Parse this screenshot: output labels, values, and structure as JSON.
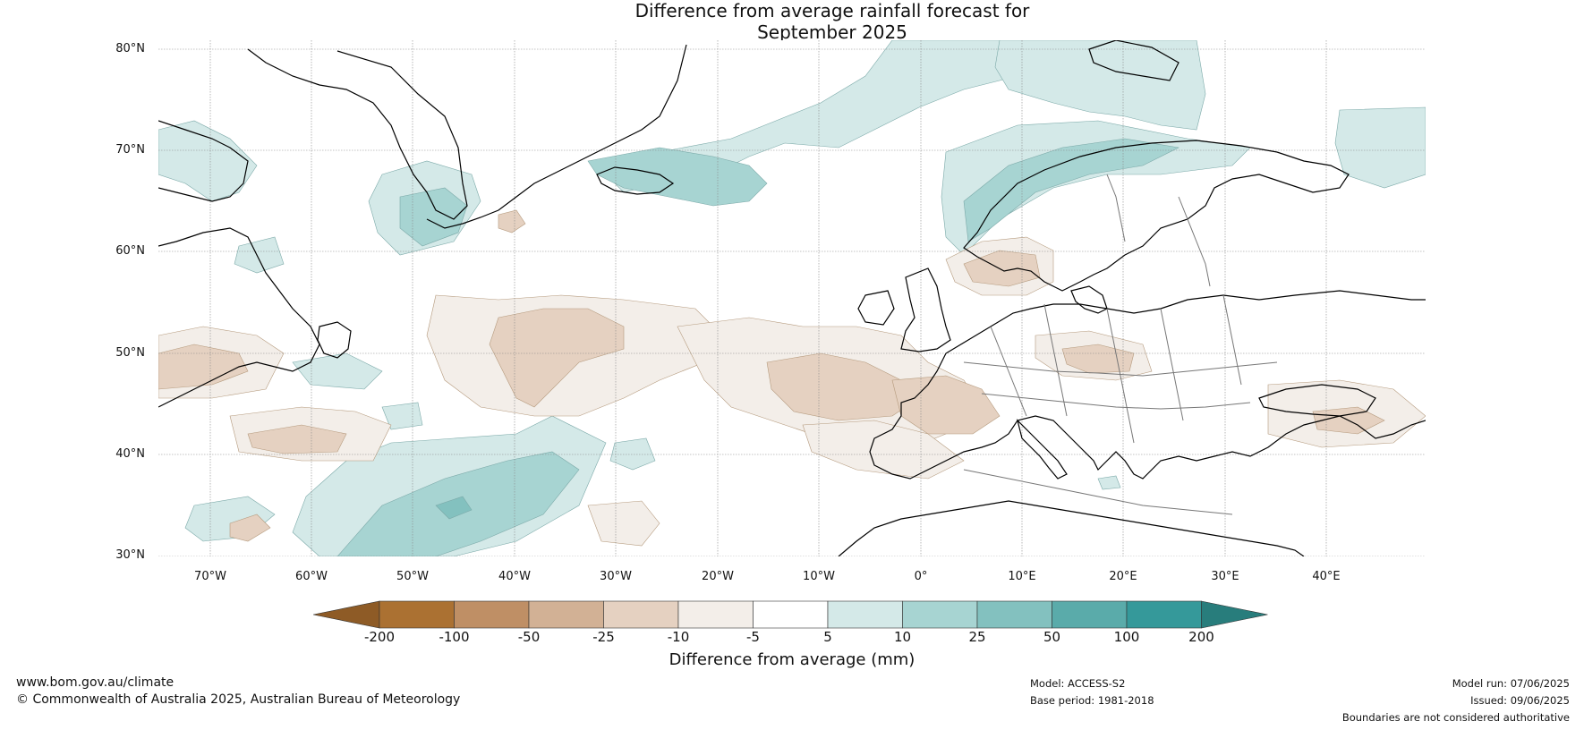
{
  "title_line1": "Difference from average rainfall forecast for",
  "title_line2": "September 2025",
  "lat_labels": [
    "80°N",
    "70°N",
    "60°N",
    "50°N",
    "40°N",
    "30°N"
  ],
  "lon_labels": [
    "70°W",
    "60°W",
    "50°W",
    "40°W",
    "30°W",
    "20°W",
    "10°W",
    "0°",
    "10°E",
    "20°E",
    "30°E",
    "40°E"
  ],
  "colorbar": {
    "ticks": [
      "-200",
      "-100",
      "-50",
      "-25",
      "-10",
      "-5",
      "5",
      "10",
      "25",
      "50",
      "100",
      "200"
    ],
    "colors": [
      "#ab7132",
      "#bf8f65",
      "#d2b195",
      "#e5d1c1",
      "#f3eee9",
      "#ffffff",
      "#d4e9e8",
      "#a7d4d2",
      "#83c1bf",
      "#5aabaa",
      "#35999a"
    ],
    "under_color": "#8e5b26",
    "over_color": "#287d7c",
    "label": "Difference from average (mm)"
  },
  "footer": {
    "url": "www.bom.gov.au/climate",
    "copyright": "© Commonwealth of Australia 2025, Australian Bureau of Meteorology",
    "model": "Model: ACCESS-S2",
    "base_period": "Base period: 1981-2018",
    "model_run": "Model run: 07/06/2025",
    "issued": "Issued: 09/06/2025",
    "disclaimer": "Boundaries are not considered authoritative"
  }
}
